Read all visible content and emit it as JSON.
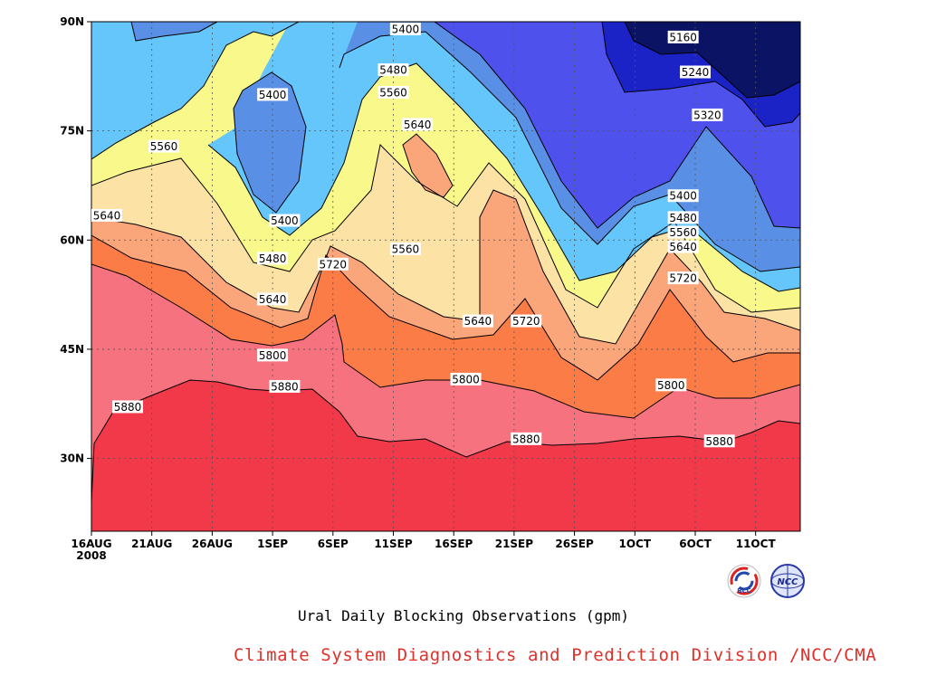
{
  "chart_data": {
    "type": "heatmap",
    "title": "",
    "xlabel": "",
    "ylabel": "",
    "x_ticks": [
      "16AUG",
      "21AUG",
      "26AUG",
      "1SEP",
      "6SEP",
      "11SEP",
      "16SEP",
      "21SEP",
      "26SEP",
      "1OCT",
      "6OCT",
      "11OCT"
    ],
    "x_year": "2008",
    "y_ticks": [
      "30N",
      "45N",
      "60N",
      "75N",
      "90N"
    ],
    "ylim": [
      20,
      90
    ],
    "contour_levels": [
      5160,
      5240,
      5320,
      5400,
      5480,
      5560,
      5640,
      5720,
      5800,
      5880
    ],
    "fill_colors": [
      "#0b1364",
      "#1b22c6",
      "#4e51ec",
      "#5a8fe6",
      "#64c6fb",
      "#f8f98a",
      "#fde2a6",
      "#fba57a",
      "#fb7c47",
      "#f5727e",
      "#f2394a"
    ],
    "contour_labels": [
      {
        "text": "5160",
        "date": "4OCT",
        "lat": 87.9
      },
      {
        "text": "5240",
        "date": "5OCT",
        "lat": 83.1
      },
      {
        "text": "5320",
        "date": "6OCT",
        "lat": 77.2
      },
      {
        "text": "5400",
        "date": "11SEP",
        "lat": 89.0
      },
      {
        "text": "5400",
        "date": "31AUG",
        "lat": 80.0
      },
      {
        "text": "5400",
        "date": "1SEP",
        "lat": 62.7
      },
      {
        "text": "5400",
        "date": "4OCT",
        "lat": 66.1
      },
      {
        "text": "5480",
        "date": "10SEP",
        "lat": 83.4
      },
      {
        "text": "5480",
        "date": "31AUG",
        "lat": 57.5
      },
      {
        "text": "5480",
        "date": "4OCT",
        "lat": 63.1
      },
      {
        "text": "5560",
        "date": "22AUG",
        "lat": 72.9
      },
      {
        "text": "5560",
        "date": "10SEP",
        "lat": 80.3
      },
      {
        "text": "5560",
        "date": "11SEP",
        "lat": 58.8
      },
      {
        "text": "5560",
        "date": "4OCT",
        "lat": 61.1
      },
      {
        "text": "5640",
        "date": "16AUG",
        "lat": 63.4
      },
      {
        "text": "5640",
        "date": "12SEP",
        "lat": 75.9
      },
      {
        "text": "5640",
        "date": "31AUG",
        "lat": 51.9
      },
      {
        "text": "5640",
        "date": "17SEP",
        "lat": 48.9
      },
      {
        "text": "5640",
        "date": "4OCT",
        "lat": 59.1
      },
      {
        "text": "5720",
        "date": "5SEP",
        "lat": 56.7
      },
      {
        "text": "5720",
        "date": "21SEP",
        "lat": 48.9
      },
      {
        "text": "5720",
        "date": "4OCT",
        "lat": 54.8
      },
      {
        "text": "5800",
        "date": "31AUG",
        "lat": 44.2
      },
      {
        "text": "5800",
        "date": "16SEP",
        "lat": 40.9
      },
      {
        "text": "5800",
        "date": "3OCT",
        "lat": 40.1
      },
      {
        "text": "5880",
        "date": "19AUG",
        "lat": 37.1
      },
      {
        "text": "5880",
        "date": "1SEP",
        "lat": 39.9
      },
      {
        "text": "5880",
        "date": "21SEP",
        "lat": 32.7
      },
      {
        "text": "5880",
        "date": "7OCT",
        "lat": 32.4
      }
    ]
  },
  "caption": "Ural Daily Blocking Observations (gpm)",
  "credit": "Climate System Diagnostics and Prediction Division /NCC/CMA",
  "logos": {
    "bcc": "BCC",
    "ncc": "NCC"
  }
}
